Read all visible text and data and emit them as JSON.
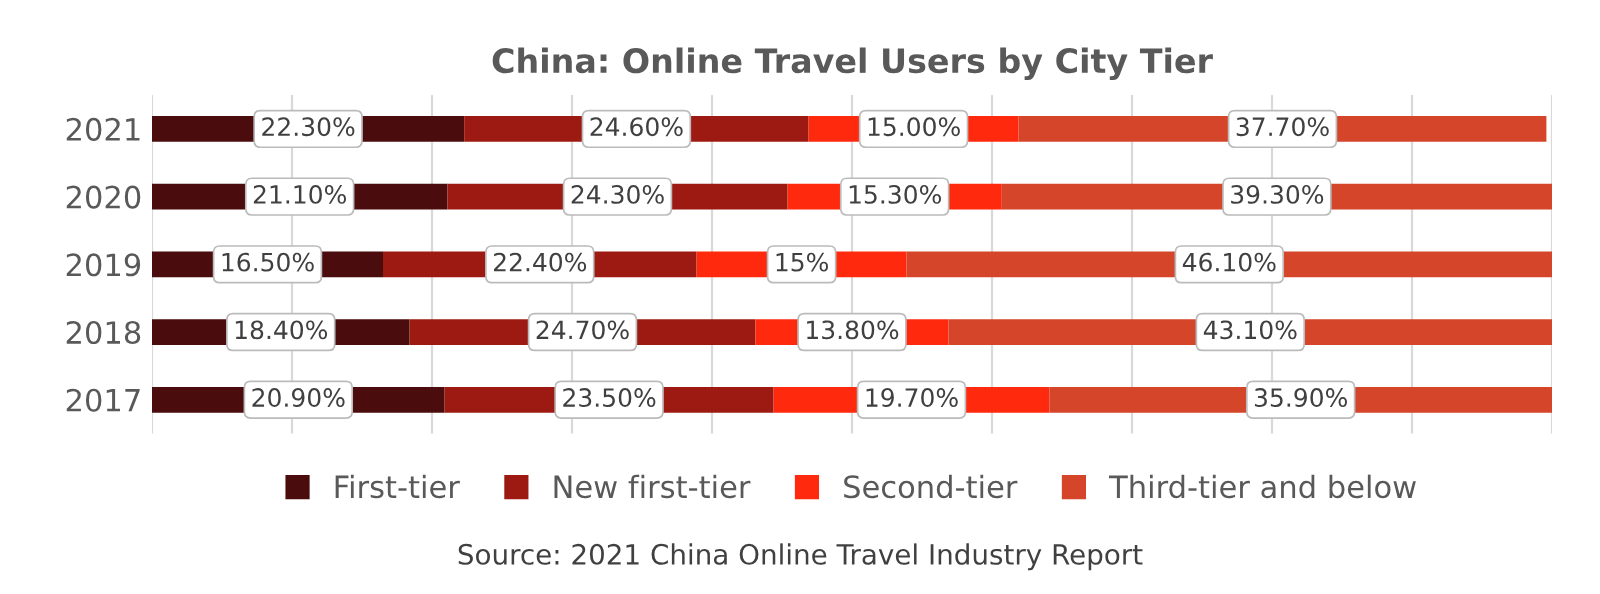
{
  "chart_data": {
    "type": "bar",
    "orientation": "horizontal",
    "stacked": true,
    "title": "China: Online Travel Users by City Tier",
    "categories": [
      "2021",
      "2020",
      "2019",
      "2018",
      "2017"
    ],
    "series": [
      {
        "name": "First-tier",
        "color": "#4a0c0c",
        "values": [
          22.3,
          21.1,
          16.5,
          18.4,
          20.9
        ],
        "value_labels": [
          "22.30%",
          "21.10%",
          "16.50%",
          "18.40%",
          "20.90%"
        ]
      },
      {
        "name": "New first-tier",
        "color": "#9c1a12",
        "values": [
          24.6,
          24.3,
          22.4,
          24.7,
          23.5
        ],
        "value_labels": [
          "24.60%",
          "24.30%",
          "22.40%",
          "24.70%",
          "23.50%"
        ]
      },
      {
        "name": "Second-tier",
        "color": "#ff2a0e",
        "values": [
          15.0,
          15.3,
          15,
          13.8,
          19.7
        ],
        "value_labels": [
          "15.00%",
          "15.30%",
          "15%",
          "13.80%",
          "19.70%"
        ]
      },
      {
        "name": "Third-tier and below",
        "color": "#d4452a",
        "values": [
          37.7,
          39.3,
          46.1,
          43.1,
          35.9
        ],
        "value_labels": [
          "37.70%",
          "39.30%",
          "46.10%",
          "43.10%",
          "35.90%"
        ]
      }
    ],
    "xlim": [
      0,
      100
    ],
    "xticks": [
      {
        "value": 0,
        "label": null
      },
      {
        "value": 10,
        "label": null
      },
      {
        "value": 20,
        "label": null
      },
      {
        "value": 30,
        "label": null
      },
      {
        "value": 40,
        "label": null
      },
      {
        "value": 50,
        "label": null
      },
      {
        "value": 60,
        "label": null
      },
      {
        "value": 70,
        "label": null
      },
      {
        "value": 80,
        "label": null
      },
      {
        "value": 90,
        "label": null
      },
      {
        "value": 100,
        "label": null
      }
    ],
    "grid": "x",
    "legend": "bottom",
    "tick_labels": "y",
    "annotations": [
      "Source: 2021 China Online Travel Industry Report"
    ]
  }
}
